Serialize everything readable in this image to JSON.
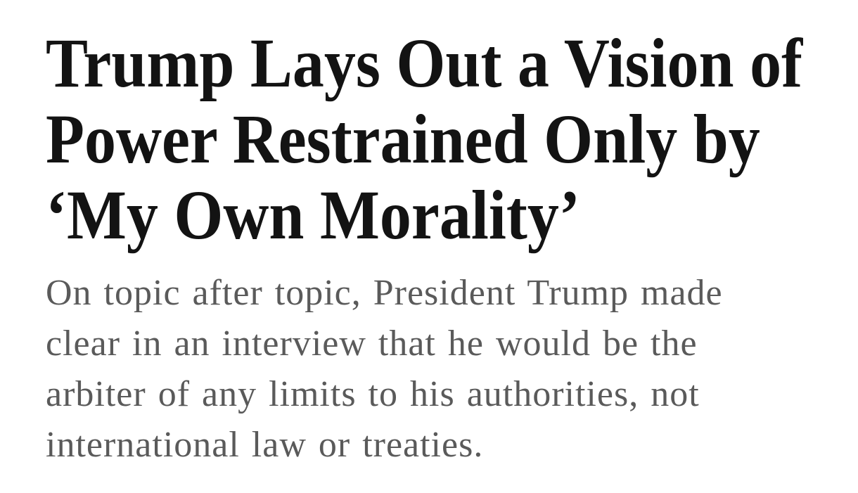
{
  "page": {
    "background_color": "#ffffff"
  },
  "article": {
    "headline": {
      "full_text": "Trump Lays Out a Vision of Power Restrained Only by ‘My Own Morality’",
      "lines": [
        "Trump Lays Out a Vision of",
        "Power Restrained Only by",
        "‘My Own Morality’"
      ],
      "color": "#131313"
    },
    "summary": {
      "full_text": "On topic after topic, President Trump made clear in an interview that he would be the arbiter of any limits to his authorities, not international law or treaties.",
      "lines": [
        "On topic after topic, President Trump made",
        "clear in an interview that he would be the",
        "arbiter of any limits to his authorities, not",
        "international law or treaties."
      ],
      "color": "#5a5a5a"
    }
  }
}
